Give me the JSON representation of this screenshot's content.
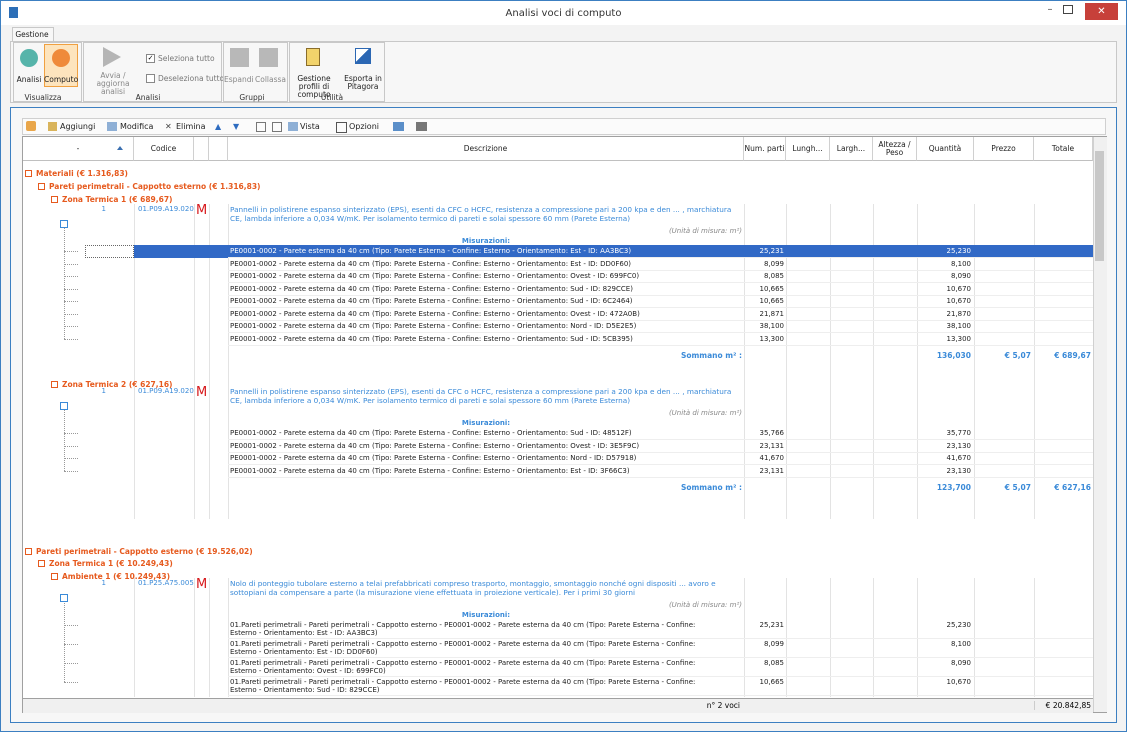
{
  "window": {
    "title": "Analisi voci di computo"
  },
  "ribbon": {
    "tab": "Gestione",
    "groups": [
      {
        "label": "Visualizza",
        "buttons": [
          "Analisi",
          "Computo"
        ]
      },
      {
        "label": "Analisi",
        "buttons": [
          "Avvia / aggiorna analisi",
          "Seleziona tutto",
          "Deseleziona tutto"
        ]
      },
      {
        "label": "Gruppi",
        "buttons": [
          "Espandi",
          "Collassa"
        ]
      },
      {
        "label": "Utilità",
        "buttons": [
          "Gestione profili di computo",
          "Esporta in Pitagora"
        ]
      }
    ]
  },
  "toolbar": {
    "buttons": [
      "Aggiungi",
      "Modifica",
      "Elimina",
      "Vista",
      "Opzioni"
    ]
  },
  "grid": {
    "columns": [
      "-",
      "Codice",
      "Descrizione",
      "Num. parti",
      "Lungh...",
      "Largh...",
      "Altezza / Peso",
      "Quantità",
      "Prezzo",
      "Totale"
    ],
    "rows": [
      {
        "level": 0,
        "label": "Materiali (€ 1.316,83)"
      },
      {
        "level": 1,
        "label": "Pareti perimetrali - Cappotto esterno (€ 1.316,83)"
      },
      {
        "level": 2,
        "label": "Zona Termica 1 (€ 689,67)"
      },
      {
        "num": "1",
        "code": "01.P09.A19.020",
        "flag": "M",
        "description": "Pannelli in polistirene espanso sinterizzato (EPS), esenti da CFC o HCFC, resistenza a compressione pari a 200 kpa e den ... , marchiatura CE, lambda inferiore a 0,034 W/mK. Per isolamento termico di pareti e solai spessore 60 mm (Parete Esterna)",
        "unit": "(Unità di misura: m²)",
        "measures_title": "Misurazioni:",
        "measures": [
          {
            "text": "PE0001-0002 - Parete esterna da 40 cm (Tipo: Parete Esterna - Confine: Esterno - Orientamento: Est - ID: AA3BC3)",
            "parts": "25,231",
            "quantity": "25,230"
          },
          {
            "text": "PE0001-0002 - Parete esterna da 40 cm (Tipo: Parete Esterna - Confine: Esterno - Orientamento: Est - ID: DD0F60)",
            "parts": "8,099",
            "quantity": "8,100"
          },
          {
            "text": "PE0001-0002 - Parete esterna da 40 cm (Tipo: Parete Esterna - Confine: Esterno - Orientamento: Ovest - ID: 699FC0)",
            "parts": "8,085",
            "quantity": "8,090"
          },
          {
            "text": "PE0001-0002 - Parete esterna da 40 cm (Tipo: Parete Esterna - Confine: Esterno - Orientamento: Sud - ID: 829CCE)",
            "parts": "10,665",
            "quantity": "10,670"
          },
          {
            "text": "PE0001-0002 - Parete esterna da 40 cm (Tipo: Parete Esterna - Confine: Esterno - Orientamento: Sud - ID: 6C2464)",
            "parts": "10,665",
            "quantity": "10,670"
          },
          {
            "text": "PE0001-0002 - Parete esterna da 40 cm (Tipo: Parete Esterna - Confine: Esterno - Orientamento: Ovest - ID: 472A0B)",
            "parts": "21,871",
            "quantity": "21,870"
          },
          {
            "text": "PE0001-0002 - Parete esterna da 40 cm (Tipo: Parete Esterna - Confine: Esterno - Orientamento: Nord - ID: D5E2E5)",
            "parts": "38,100",
            "quantity": "38,100"
          },
          {
            "text": "PE0001-0002 - Parete esterna da 40 cm (Tipo: Parete Esterna - Confine: Esterno - Orientamento: Sud - ID: 5CB395)",
            "parts": "13,300",
            "quantity": "13,300"
          }
        ],
        "sum_label": "Sommano m² :",
        "sum_quantity": "136,030",
        "price": "€ 5,07",
        "total": "€ 689,67"
      },
      {
        "level": 2,
        "label": "Zona Termica 2 (€ 627,16)"
      },
      {
        "num": "1",
        "code": "01.P09.A19.020",
        "flag": "M",
        "description": "Pannelli in polistirene espanso sinterizzato (EPS), esenti da CFC o HCFC, resistenza a compressione pari a 200 kpa e den ... , marchiatura CE, lambda inferiore a 0,034 W/mK. Per isolamento termico di pareti e solai spessore 60 mm (Parete Esterna)",
        "unit": "(Unità di misura: m²)",
        "measures_title": "Misurazioni:",
        "measures": [
          {
            "text": "PE0001-0002 - Parete esterna da 40 cm (Tipo: Parete Esterna - Confine: Esterno - Orientamento: Sud - ID: 48512F)",
            "parts": "35,766",
            "quantity": "35,770"
          },
          {
            "text": "PE0001-0002 - Parete esterna da 40 cm (Tipo: Parete Esterna - Confine: Esterno - Orientamento: Ovest - ID: 3E5F9C)",
            "parts": "23,131",
            "quantity": "23,130"
          },
          {
            "text": "PE0001-0002 - Parete esterna da 40 cm (Tipo: Parete Esterna - Confine: Esterno - Orientamento: Nord - ID: D57918)",
            "parts": "41,670",
            "quantity": "41,670"
          },
          {
            "text": "PE0001-0002 - Parete esterna da 40 cm (Tipo: Parete Esterna - Confine: Esterno - Orientamento: Est - ID: 3F66C3)",
            "parts": "23,131",
            "quantity": "23,130"
          }
        ],
        "sum_label": "Sommano m² :",
        "sum_quantity": "123,700",
        "price": "€ 5,07",
        "total": "€ 627,16"
      },
      {
        "level": 0,
        "label": "Pareti perimetrali - Cappotto esterno (€ 19.526,02)"
      },
      {
        "level": 1,
        "label": "Zona Termica 1 (€ 10.249,43)"
      },
      {
        "level": 2,
        "label": "Ambiente 1 (€ 10.249,43)"
      },
      {
        "num": "1",
        "code": "01.P25.A75.005",
        "flag": "M",
        "description": "Nolo di ponteggio tubolare esterno a telai prefabbricati compreso trasporto, montaggio, smontaggio nonché ogni dispositi ... avoro e sottopiani da compensare a parte (la misurazione viene effettuata in proiezione verticale). Per i primi 30 giorni",
        "unit": "(Unità di misura: m²)",
        "measures_title": "Misurazioni:",
        "measures": [
          {
            "text": "01.Pareti perimetrali - Pareti perimetrali - Cappotto esterno - PE0001-0002 - Parete esterna da 40 cm (Tipo: Parete Esterna - Confine: Esterno - Orientamento: Est - ID: AA3BC3)",
            "parts": "25,231",
            "quantity": "25,230"
          },
          {
            "text": "01.Pareti perimetrali - Pareti perimetrali - Cappotto esterno - PE0001-0002 - Parete esterna da 40 cm (Tipo: Parete Esterna - Confine: Esterno - Orientamento: Est - ID: DD0F60)",
            "parts": "8,099",
            "quantity": "8,100"
          },
          {
            "text": "01.Pareti perimetrali - Pareti perimetrali - Cappotto esterno - PE0001-0002 - Parete esterna da 40 cm (Tipo: Parete Esterna - Confine: Esterno - Orientamento: Ovest - ID: 699FC0)",
            "parts": "8,085",
            "quantity": "8,090"
          },
          {
            "text": "01.Pareti perimetrali - Pareti perimetrali - Cappotto esterno - PE0001-0002 - Parete esterna da 40 cm (Tipo: Parete Esterna - Confine: Esterno - Orientamento: Sud - ID: 829CCE)",
            "parts": "10,665",
            "quantity": "10,670"
          }
        ]
      }
    ],
    "footer": {
      "count": "n° 2 voci",
      "total": "€ 20.842,85"
    }
  }
}
